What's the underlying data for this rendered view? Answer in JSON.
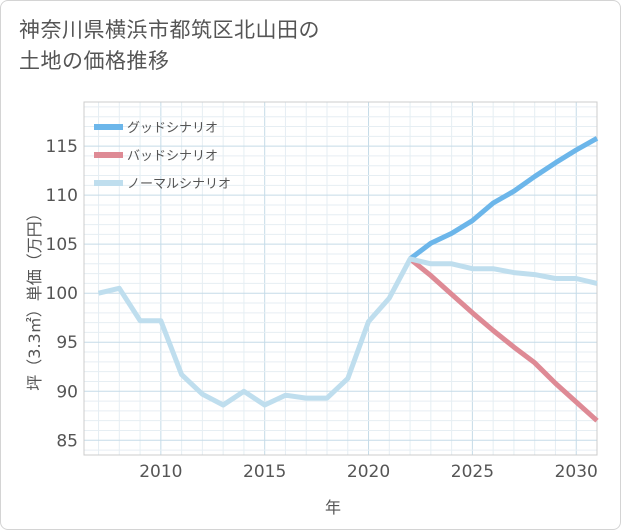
{
  "header": {
    "title_line1": "神奈川県横浜市都筑区北山田の",
    "title_line2": "土地の価格推移"
  },
  "chart_data": {
    "type": "line",
    "xlabel": "年",
    "ylabel": "坪（3.3㎡）単価（万円）",
    "xlim": [
      2006.3,
      2031
    ],
    "ylim": [
      83.5,
      119.5
    ],
    "xticks": [
      2010,
      2015,
      2020,
      2025,
      2030
    ],
    "yticks": [
      85,
      90,
      95,
      100,
      105,
      110,
      115
    ],
    "grid": true,
    "legend_position": "top-left",
    "series": [
      {
        "name": "グッドシナリオ",
        "color": "#6cb6ea",
        "x": [
          2022,
          2023,
          2024,
          2025,
          2026,
          2027,
          2028,
          2029,
          2030,
          2031
        ],
        "y": [
          103.5,
          105.1,
          106.1,
          107.4,
          109.2,
          110.4,
          111.9,
          113.3,
          114.6,
          115.8
        ]
      },
      {
        "name": "バッドシナリオ",
        "color": "#de8a95",
        "x": [
          2022,
          2023,
          2024,
          2025,
          2026,
          2027,
          2028,
          2029,
          2030,
          2031
        ],
        "y": [
          103.5,
          101.8,
          99.9,
          98.0,
          96.2,
          94.5,
          92.9,
          90.8,
          88.9,
          87.0
        ]
      },
      {
        "name": "ノーマルシナリオ",
        "color": "#bfdeee",
        "x": [
          2007,
          2008,
          2009,
          2010,
          2011,
          2012,
          2013,
          2014,
          2015,
          2016,
          2017,
          2018,
          2019,
          2020,
          2021,
          2022,
          2023,
          2024,
          2025,
          2026,
          2027,
          2028,
          2029,
          2030,
          2031
        ],
        "y": [
          100.0,
          100.5,
          97.2,
          97.2,
          91.7,
          89.7,
          88.6,
          90.0,
          88.6,
          89.6,
          89.3,
          89.3,
          91.3,
          97.1,
          99.5,
          103.5,
          103.0,
          103.0,
          102.5,
          102.5,
          102.1,
          101.9,
          101.5,
          101.5,
          101.0
        ]
      }
    ]
  }
}
